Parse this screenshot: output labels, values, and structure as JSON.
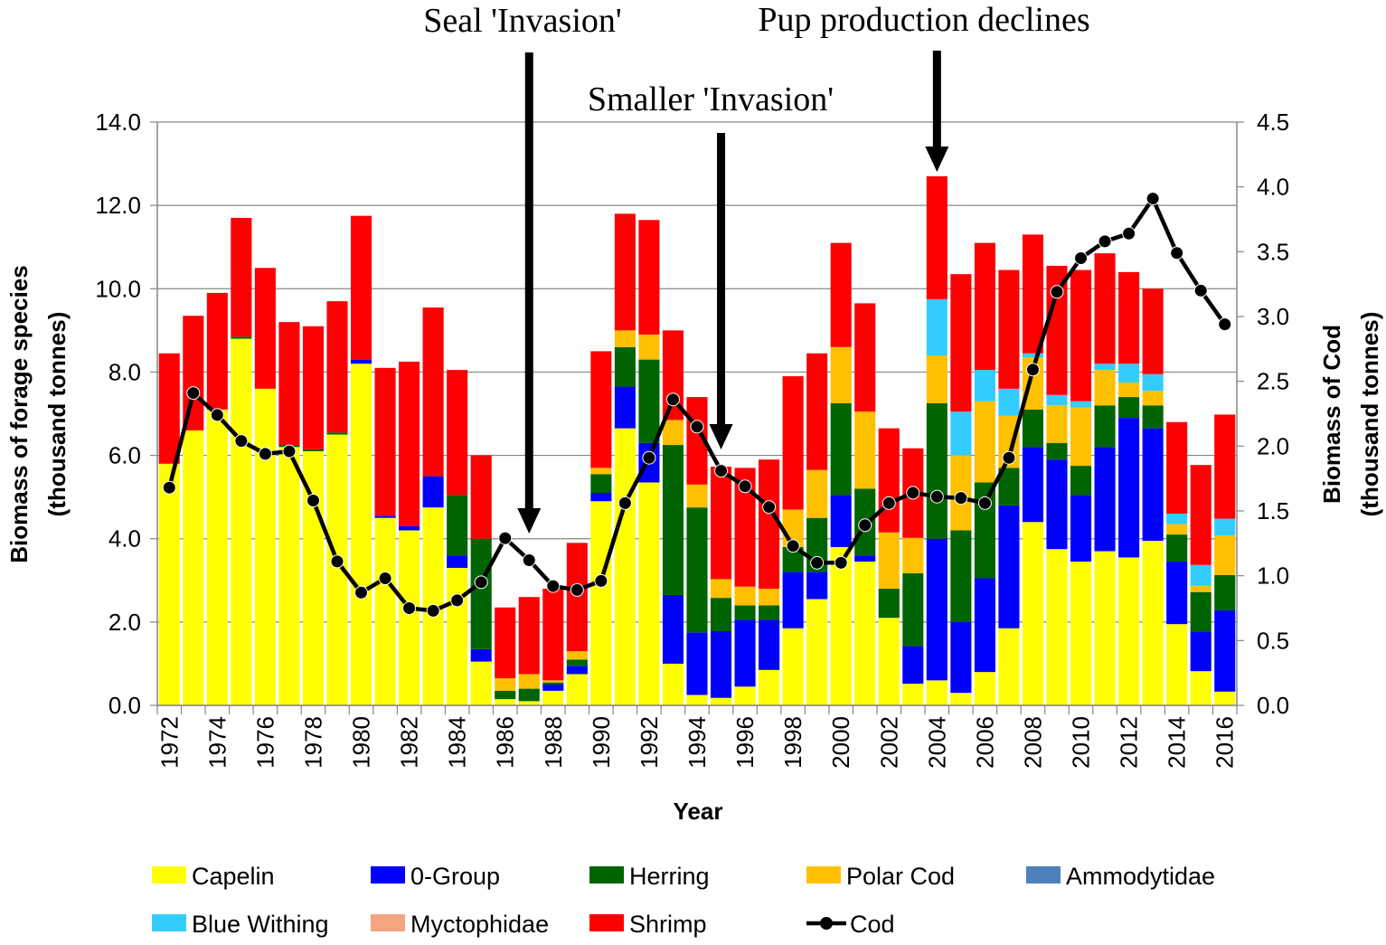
{
  "chart_data": {
    "type": "bar",
    "subtype": "stacked-bar-with-line",
    "title": "",
    "xlabel": "Year",
    "ylabel_left": [
      "Biomass of forage species",
      "(thousand tonnes)"
    ],
    "ylabel_right": [
      "Biomass of Cod",
      "(thousand tonnes)"
    ],
    "ylim_left": [
      0,
      14
    ],
    "ylim_right": [
      0,
      4.5
    ],
    "yticks_left": [
      "0.0",
      "2.0",
      "4.0",
      "6.0",
      "8.0",
      "10.0",
      "12.0",
      "14.0"
    ],
    "yticks_right": [
      "0.0",
      "0.5",
      "1.0",
      "1.5",
      "2.0",
      "2.5",
      "3.0",
      "3.5",
      "4.0",
      "4.5"
    ],
    "grid": "horizontal",
    "legend_position": "bottom",
    "categories": [
      "1972",
      "1973",
      "1974",
      "1975",
      "1976",
      "1977",
      "1978",
      "1979",
      "1980",
      "1981",
      "1982",
      "1983",
      "1984",
      "1985",
      "1986",
      "1987",
      "1988",
      "1989",
      "1990",
      "1991",
      "1992",
      "1993",
      "1994",
      "1995",
      "1996",
      "1997",
      "1998",
      "1999",
      "2000",
      "2001",
      "2002",
      "2003",
      "2004",
      "2005",
      "2006",
      "2007",
      "2008",
      "2009",
      "2010",
      "2011",
      "2012",
      "2013",
      "2014",
      "2015",
      "2016"
    ],
    "xtick_labels": [
      "1972",
      "1974",
      "1976",
      "1978",
      "1980",
      "1982",
      "1984",
      "1986",
      "1988",
      "1990",
      "1992",
      "1994",
      "1996",
      "1998",
      "2000",
      "2002",
      "2004",
      "2006",
      "2008",
      "2010",
      "2012",
      "2014",
      "2016"
    ],
    "series": [
      {
        "name": "Capelin",
        "color": "#FFFF00",
        "values": [
          5.8,
          6.6,
          7.1,
          8.8,
          7.6,
          6.2,
          6.1,
          6.5,
          8.2,
          4.5,
          4.2,
          4.75,
          3.3,
          1.05,
          0.15,
          0.1,
          0.35,
          0.75,
          4.9,
          6.65,
          5.35,
          1.0,
          0.25,
          0.18,
          0.45,
          0.85,
          1.85,
          2.55,
          3.8,
          3.45,
          2.1,
          0.52,
          0.6,
          0.3,
          0.8,
          1.85,
          4.4,
          3.75,
          3.45,
          3.7,
          3.55,
          3.95,
          1.95,
          0.82,
          0.33
        ]
      },
      {
        "name": "0-Group",
        "color": "#0000FF",
        "values": [
          0,
          0,
          0,
          0,
          0,
          0,
          0,
          0,
          0.1,
          0.05,
          0.1,
          0.75,
          0.3,
          0.3,
          0,
          0,
          0.15,
          0.2,
          0.2,
          1.0,
          0.95,
          1.65,
          1.5,
          1.6,
          1.6,
          1.2,
          1.35,
          0.65,
          1.25,
          0.15,
          0,
          0.9,
          3.4,
          1.7,
          2.25,
          2.95,
          1.8,
          2.15,
          1.6,
          2.5,
          3.35,
          2.7,
          1.5,
          0.95,
          1.95
        ]
      },
      {
        "name": "Herring",
        "color": "#006400",
        "values": [
          0,
          0,
          0,
          0.05,
          0,
          0.05,
          0.05,
          0.05,
          0,
          0,
          0,
          0,
          1.45,
          2.65,
          0.2,
          0.3,
          0.05,
          0.15,
          0.45,
          0.95,
          2.0,
          3.6,
          3.0,
          0.8,
          0.35,
          0.35,
          0.6,
          1.3,
          2.2,
          1.6,
          0.7,
          1.75,
          3.25,
          2.2,
          2.3,
          0.9,
          0.9,
          0.4,
          0.7,
          1.0,
          0.5,
          0.55,
          0.65,
          0.95,
          0.85
        ]
      },
      {
        "name": "Polar Cod",
        "color": "#FFC000",
        "values": [
          0,
          0,
          0,
          0,
          0,
          0,
          0,
          0,
          0,
          0,
          0,
          0,
          0,
          0,
          0.3,
          0.35,
          0.05,
          0.2,
          0.15,
          0.4,
          0.6,
          0.6,
          0.55,
          0.45,
          0.45,
          0.4,
          0.9,
          1.15,
          1.35,
          1.85,
          1.35,
          0.85,
          1.15,
          1.8,
          1.95,
          1.25,
          1.25,
          0.9,
          1.4,
          0.85,
          0.35,
          0.35,
          0.25,
          0.15,
          0.95
        ]
      },
      {
        "name": "Ammodytidae",
        "color": "#4F81BD",
        "values": [
          0,
          0,
          0,
          0,
          0,
          0,
          0,
          0,
          0,
          0,
          0,
          0,
          0,
          0,
          0,
          0,
          0,
          0,
          0,
          0,
          0,
          0,
          0,
          0,
          0,
          0,
          0,
          0,
          0,
          0,
          0,
          0,
          0,
          0,
          0,
          0,
          0,
          0,
          0,
          0,
          0,
          0,
          0,
          0,
          0
        ]
      },
      {
        "name": "Blue Withing",
        "color": "#33CCFF",
        "values": [
          0,
          0,
          0,
          0,
          0,
          0,
          0,
          0,
          0,
          0,
          0,
          0,
          0,
          0,
          0,
          0,
          0,
          0,
          0,
          0,
          0,
          0,
          0,
          0,
          0,
          0,
          0,
          0,
          0,
          0,
          0,
          0,
          1.35,
          1.05,
          0.75,
          0.65,
          0.1,
          0.25,
          0.15,
          0.15,
          0.45,
          0.4,
          0.25,
          0.5,
          0.4
        ]
      },
      {
        "name": "Myctophidae",
        "color": "#F4A582",
        "values": [
          0,
          0,
          0,
          0,
          0,
          0,
          0,
          0,
          0,
          0,
          0,
          0,
          0,
          0,
          0,
          0,
          0,
          0,
          0,
          0,
          0,
          0,
          0,
          0,
          0,
          0,
          0,
          0,
          0,
          0,
          0,
          0,
          0,
          0,
          0,
          0,
          0,
          0,
          0,
          0,
          0,
          0,
          0,
          0,
          0
        ]
      },
      {
        "name": "Shrimp",
        "color": "#FF0000",
        "values": [
          2.65,
          2.75,
          2.8,
          2.85,
          2.9,
          2.95,
          2.95,
          3.15,
          3.45,
          3.55,
          3.95,
          4.05,
          3.0,
          2.0,
          1.7,
          1.85,
          2.2,
          2.6,
          2.8,
          2.8,
          2.75,
          2.15,
          2.1,
          2.7,
          2.85,
          3.1,
          3.2,
          2.8,
          2.5,
          2.6,
          2.5,
          2.15,
          2.95,
          3.3,
          3.05,
          2.85,
          2.85,
          3.1,
          3.15,
          2.65,
          2.2,
          2.05,
          2.2,
          2.4,
          2.5
        ]
      }
    ],
    "line_series": {
      "name": "Cod",
      "color": "#000000",
      "axis": "right",
      "values": [
        1.68,
        2.41,
        2.24,
        2.04,
        1.94,
        1.96,
        1.58,
        1.11,
        0.87,
        0.98,
        0.75,
        0.73,
        0.81,
        0.95,
        1.29,
        1.12,
        0.92,
        0.89,
        0.96,
        1.56,
        1.91,
        2.36,
        2.15,
        1.81,
        1.69,
        1.53,
        1.23,
        1.1,
        1.1,
        1.39,
        1.56,
        1.64,
        1.61,
        1.6,
        1.56,
        1.91,
        2.59,
        3.19,
        3.45,
        3.58,
        3.64,
        3.91,
        3.49,
        3.2,
        2.94
      ]
    },
    "annotations": [
      {
        "text": "Seal 'Invasion'",
        "year": "1987"
      },
      {
        "text": "Smaller 'Invasion'",
        "year": "1995"
      },
      {
        "text": "Pup production declines",
        "year": "2004"
      }
    ]
  }
}
